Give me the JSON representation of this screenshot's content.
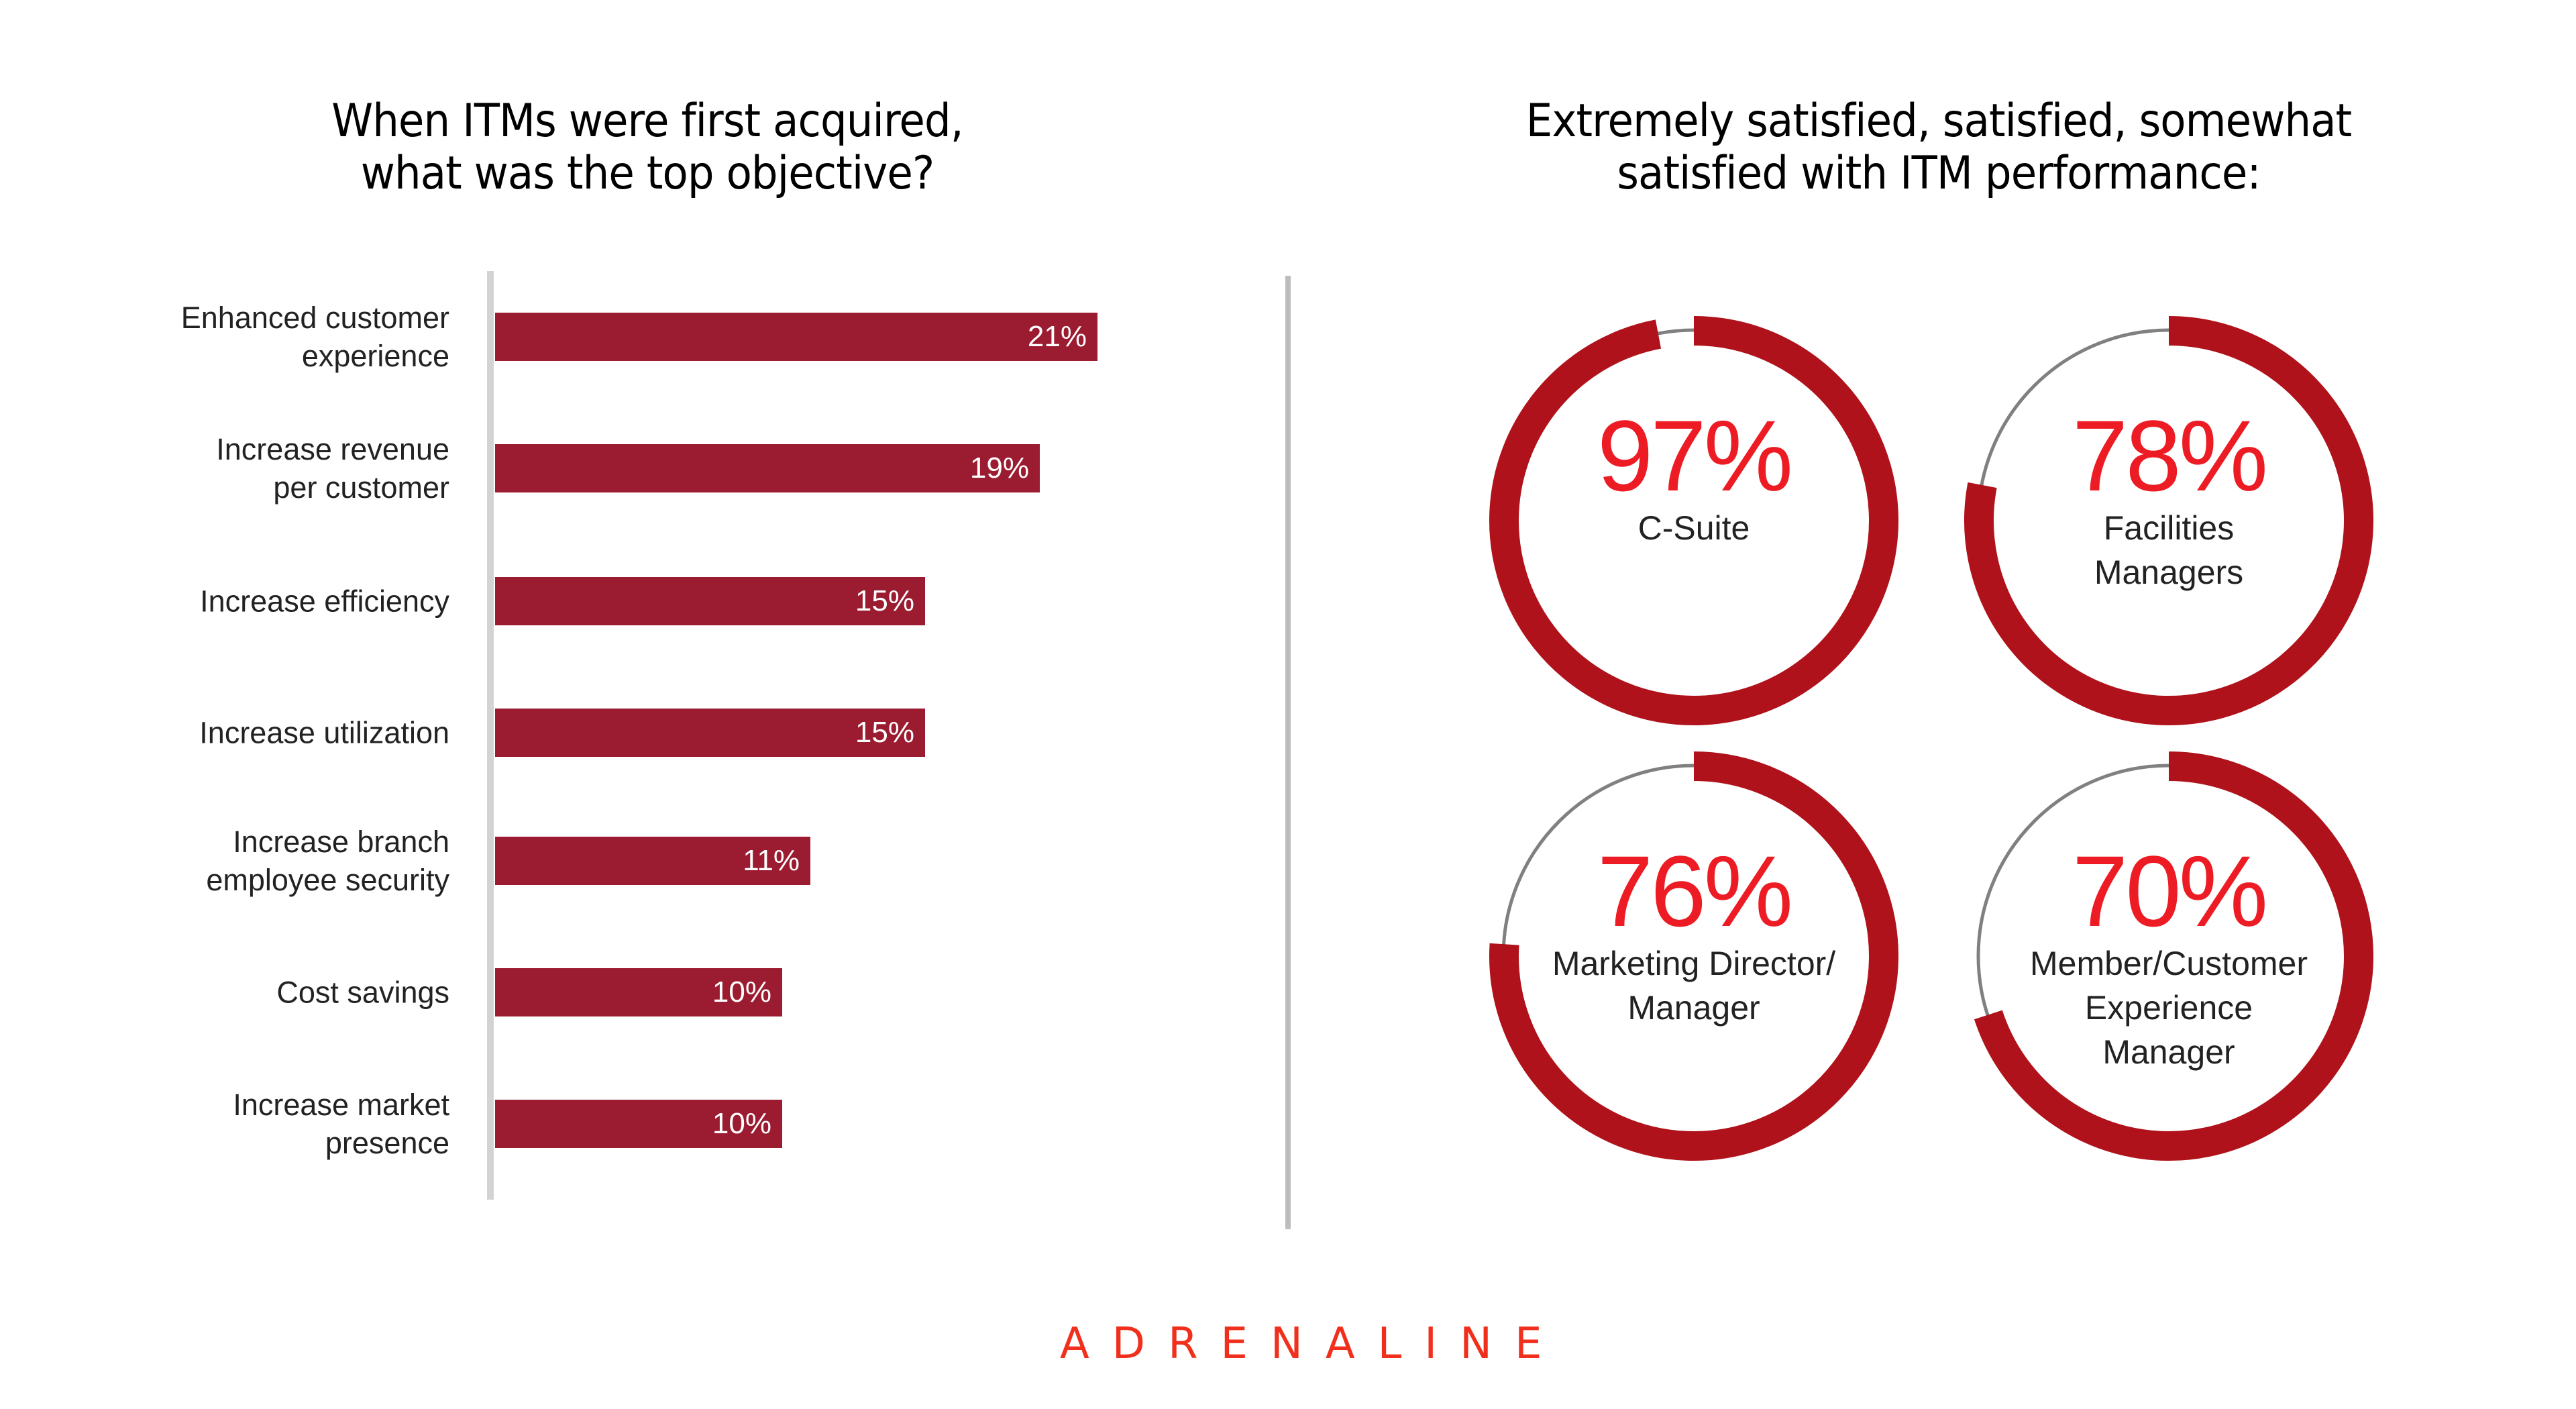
{
  "left_chart": {
    "title_line1": "When ITMs were first acquired,",
    "title_line2": "what was the top objective?",
    "bars": [
      {
        "label_line1": "Enhanced customer",
        "label_line2": "experience",
        "value": 21,
        "value_label": "21%"
      },
      {
        "label_line1": "Increase revenue",
        "label_line2": "per customer",
        "value": 19,
        "value_label": "19%"
      },
      {
        "label_line1": "Increase efficiency",
        "label_line2": "",
        "value": 15,
        "value_label": "15%"
      },
      {
        "label_line1": "Increase utilization",
        "label_line2": "",
        "value": 15,
        "value_label": "15%"
      },
      {
        "label_line1": "Increase branch",
        "label_line2": "employee security",
        "value": 11,
        "value_label": "11%"
      },
      {
        "label_line1": "Cost savings",
        "label_line2": "",
        "value": 10,
        "value_label": "10%"
      },
      {
        "label_line1": "Increase market",
        "label_line2": "presence",
        "value": 10,
        "value_label": "10%"
      }
    ]
  },
  "right_chart": {
    "title_line1": "Extremely satisfied, satisfied, somewhat",
    "title_line2": "satisfied with ITM performance:",
    "donuts": [
      {
        "value": 97,
        "pct_label": "97%",
        "label_lines": [
          "C-Suite"
        ]
      },
      {
        "value": 78,
        "pct_label": "78%",
        "label_lines": [
          "Facilities",
          "Managers"
        ]
      },
      {
        "value": 76,
        "pct_label": "76%",
        "label_lines": [
          "Marketing Director/",
          "Manager"
        ]
      },
      {
        "value": 70,
        "pct_label": "70%",
        "label_lines": [
          "Member/Customer",
          "Experience",
          "Manager"
        ]
      }
    ]
  },
  "brand": {
    "logo_text": "ADRENALINE"
  },
  "colors": {
    "bar": "#9b1c31",
    "ring": "#b0121b",
    "ring_track": "#808080",
    "pct_text": "#ed1c24",
    "logo": "#f0301c",
    "axis": "#d2d3d5"
  },
  "chart_data": [
    {
      "type": "bar",
      "orientation": "horizontal",
      "title": "When ITMs were first acquired, what was the top objective?",
      "categories": [
        "Enhanced customer experience",
        "Increase revenue per customer",
        "Increase efficiency",
        "Increase utilization",
        "Increase branch employee security",
        "Cost savings",
        "Increase market presence"
      ],
      "values": [
        21,
        19,
        15,
        15,
        11,
        10,
        10
      ],
      "unit": "%",
      "xlabel": "",
      "ylabel": "",
      "grid": false
    },
    {
      "type": "pie",
      "style": "donut-progress",
      "title": "Extremely satisfied, satisfied, somewhat satisfied with ITM performance:",
      "categories": [
        "C-Suite",
        "Facilities Managers",
        "Marketing Director/Manager",
        "Member/Customer Experience Manager"
      ],
      "values": [
        97,
        78,
        76,
        70
      ],
      "unit": "%"
    }
  ]
}
